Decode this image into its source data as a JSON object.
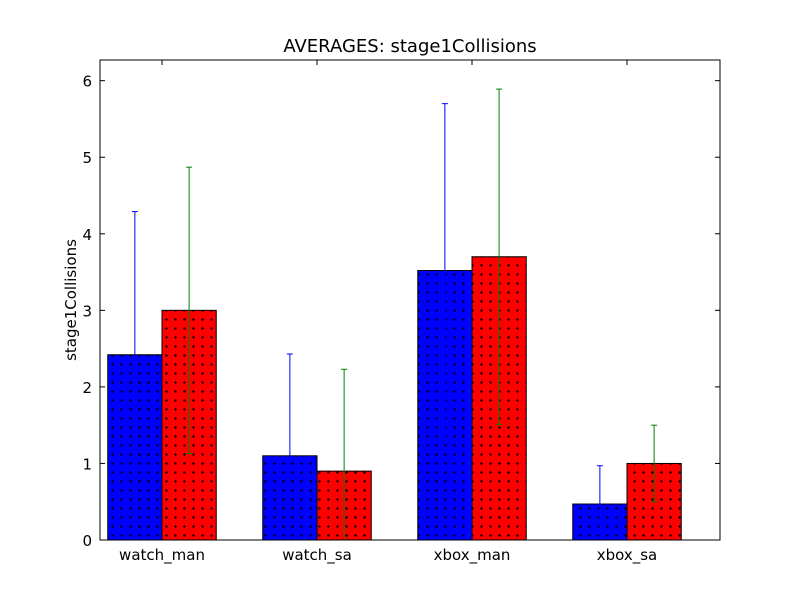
{
  "chart_data": {
    "type": "bar",
    "title": "AVERAGES: stage1Collisions",
    "xlabel": "",
    "ylabel": "stage1Collisions",
    "categories": [
      "watch_man",
      "watch_sa",
      "xbox_man",
      "xbox_sa"
    ],
    "ylim": [
      0,
      6.27
    ],
    "yticks": [
      0,
      1,
      2,
      3,
      4,
      5,
      6
    ],
    "grid": false,
    "legend": "none",
    "bar_pattern": "dots",
    "series": [
      {
        "color": "#0000ff",
        "error_color": "#0000ff",
        "values": [
          2.42,
          1.1,
          3.52,
          0.47
        ],
        "errors": [
          1.87,
          1.33,
          2.18,
          0.5
        ]
      },
      {
        "color": "#ff0000",
        "error_color": "#008000",
        "values": [
          3.0,
          0.9,
          3.7,
          1.0
        ],
        "errors": [
          1.87,
          1.33,
          2.19,
          0.5
        ]
      }
    ]
  }
}
